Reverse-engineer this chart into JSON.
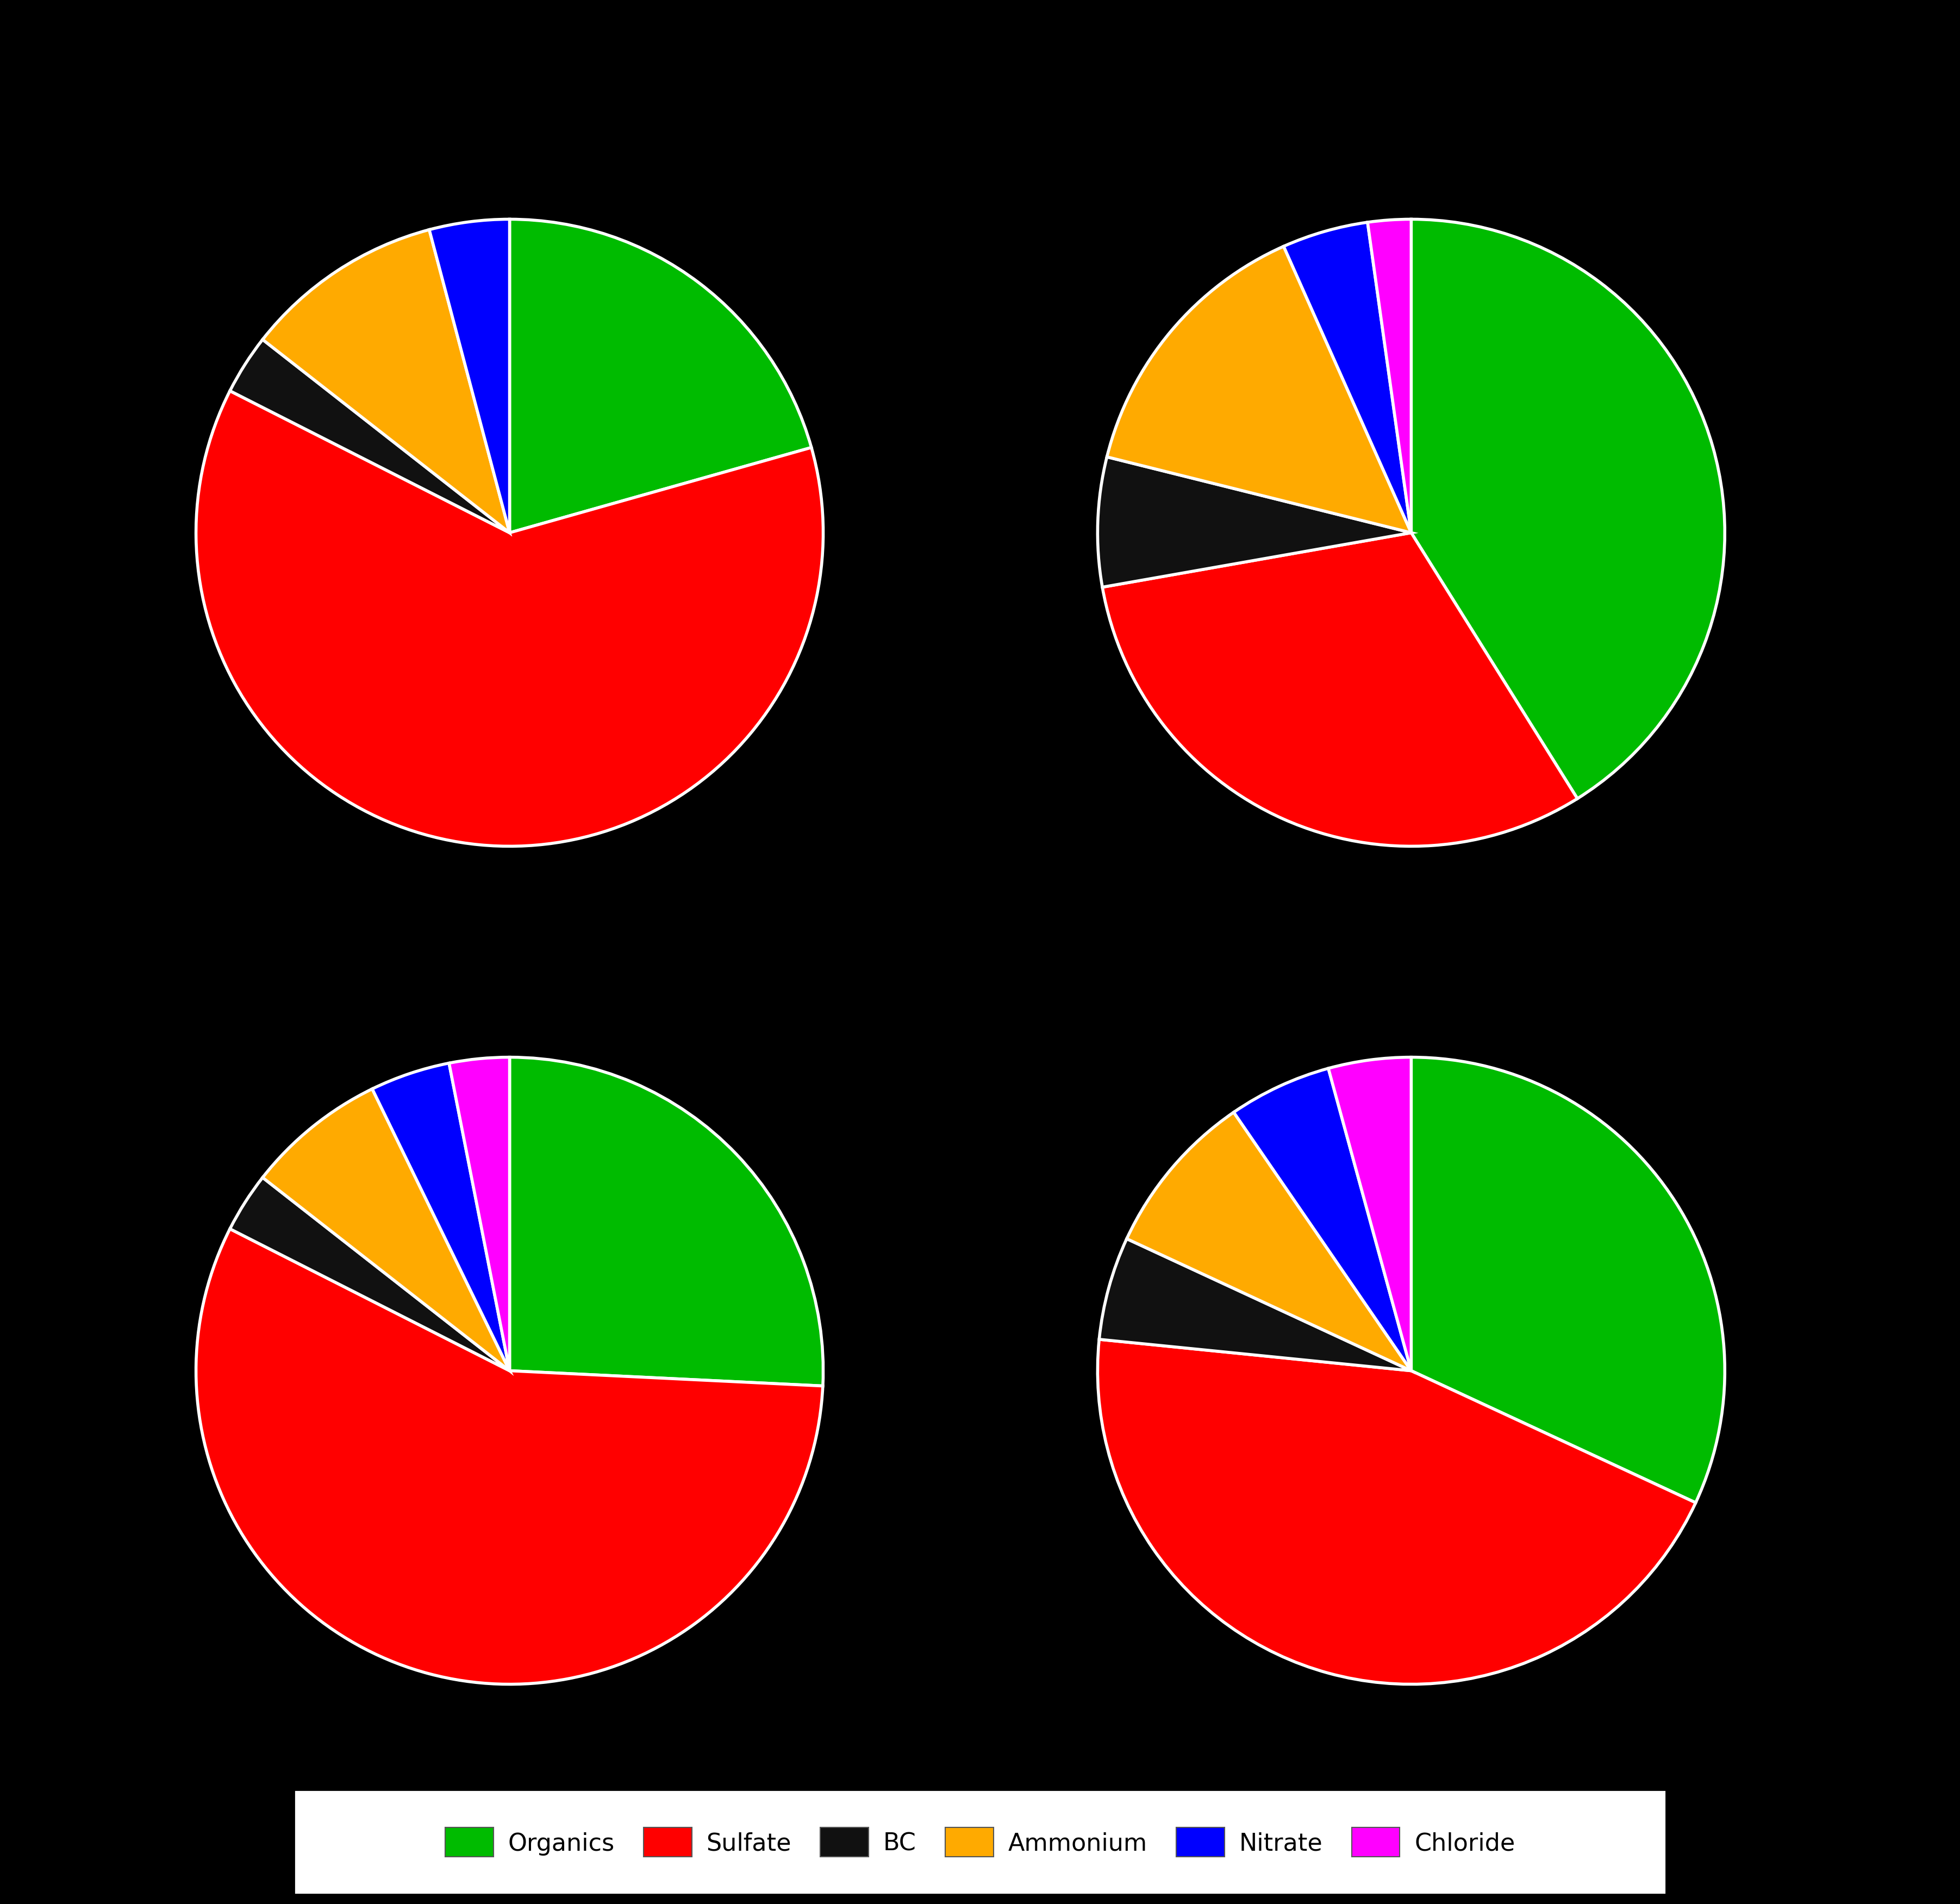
{
  "background_color": "#000000",
  "colors": {
    "Organics": "#00bb00",
    "Sulfate": "#ff0000",
    "BC": "#111111",
    "Ammonium": "#ffaa00",
    "Nitrate": "#0000ff",
    "Chloride": "#ff00ff"
  },
  "wedge_edge_color": "#ffffff",
  "wedge_edge_width": 4,
  "charts": [
    {
      "values": [
        20,
        60,
        3,
        10,
        4,
        0
      ],
      "labels": [
        "Organics",
        "Sulfate",
        "BC",
        "Ammonium",
        "Nitrate",
        "Chloride"
      ],
      "startangle": 90,
      "counterclock": false
    },
    {
      "values": [
        37,
        28,
        6,
        13,
        4,
        2
      ],
      "labels": [
        "Organics",
        "Sulfate",
        "BC",
        "Ammonium",
        "Nitrate",
        "Chloride"
      ],
      "startangle": 90,
      "counterclock": false
    },
    {
      "values": [
        25,
        55,
        3,
        7,
        4,
        3
      ],
      "labels": [
        "Organics",
        "Sulfate",
        "BC",
        "Ammonium",
        "Nitrate",
        "Chloride"
      ],
      "startangle": 90,
      "counterclock": false
    },
    {
      "values": [
        30,
        42,
        5,
        8,
        5,
        4
      ],
      "labels": [
        "Organics",
        "Sulfate",
        "BC",
        "Ammonium",
        "Nitrate",
        "Chloride"
      ],
      "startangle": 90,
      "counterclock": false
    }
  ],
  "legend_labels": [
    "Organics",
    "Sulfate",
    "BC",
    "Ammonium",
    "Nitrate",
    "Chloride"
  ],
  "legend_colors": [
    "#00bb00",
    "#ff0000",
    "#111111",
    "#ffaa00",
    "#0000ff",
    "#ff00ff"
  ],
  "legend_fontsize": 32,
  "legend_bg": "#ffffff",
  "legend_text_color": "#000000"
}
